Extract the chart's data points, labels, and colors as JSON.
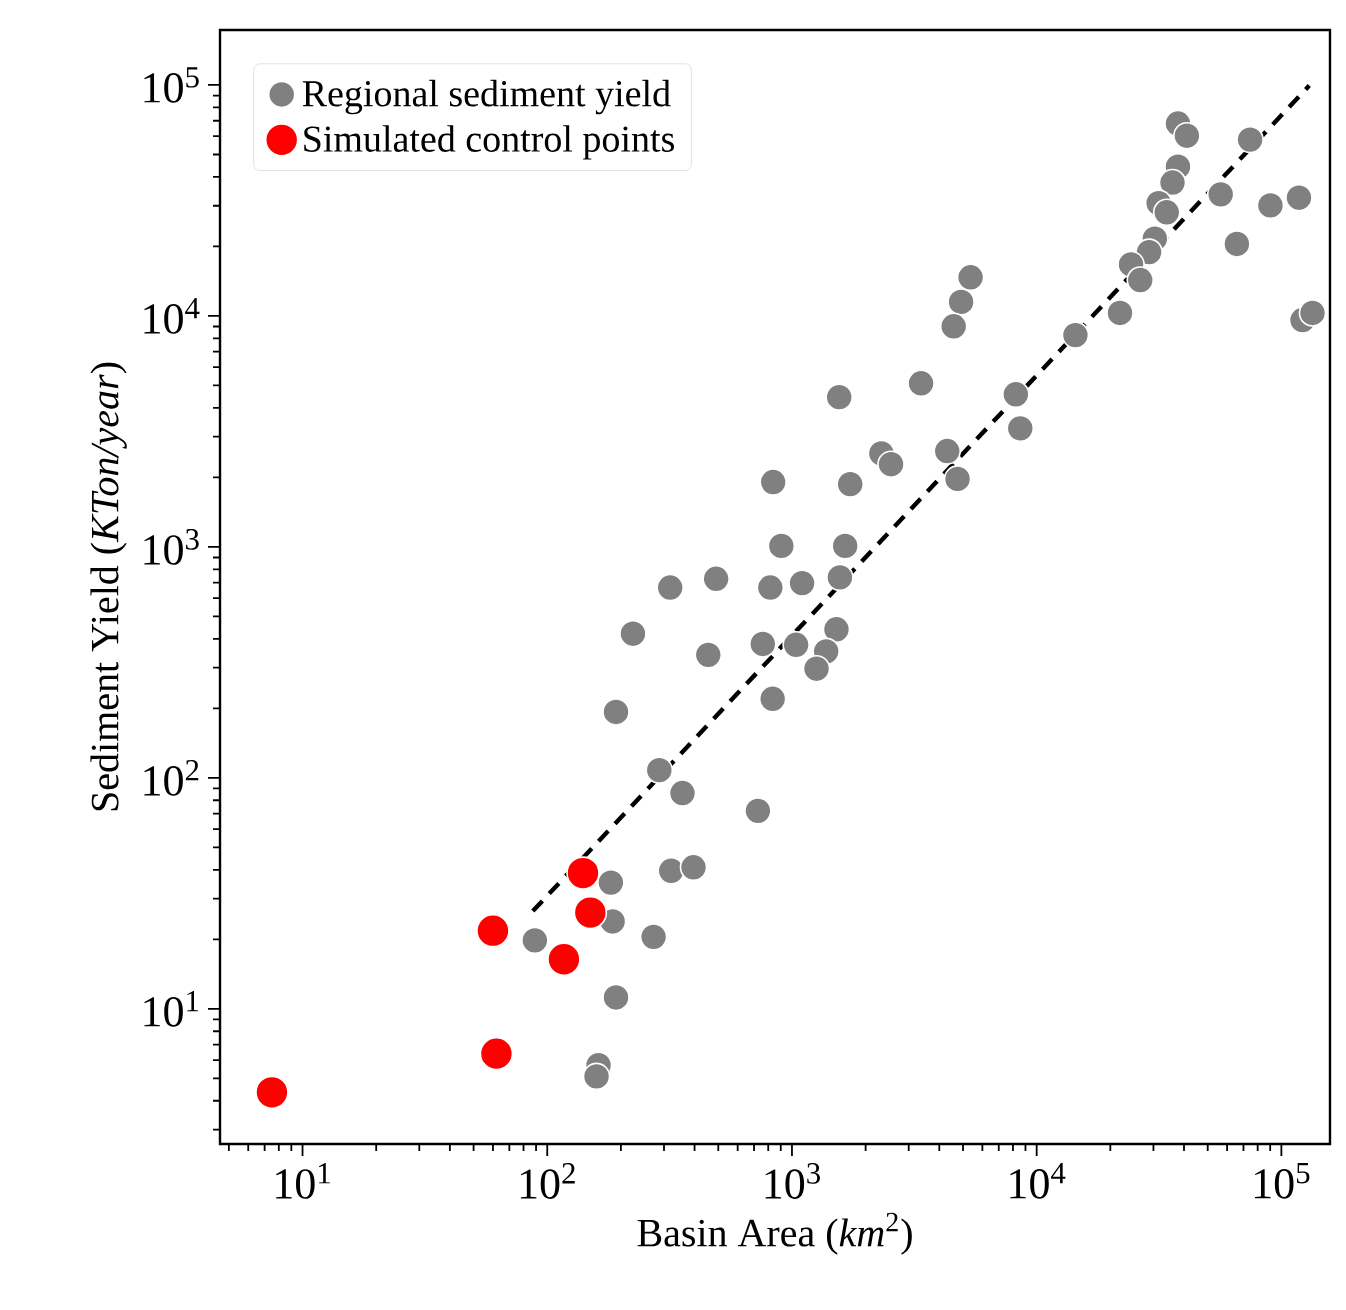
{
  "chart_data": {
    "type": "scatter",
    "xlabel": "Basin Area (*km*$^{2}$)",
    "ylabel": "Sediment Yield (*KTon/year*)",
    "log": "xy",
    "xlim": [
      4.6,
      158000
    ],
    "ylim": [
      2.6,
      173000
    ],
    "xticks": [
      {
        "value": 10,
        "label": "10$^{1}$"
      },
      {
        "value": 100,
        "label": "10$^{2}$"
      },
      {
        "value": 1000,
        "label": "10$^{3}$"
      },
      {
        "value": 10000,
        "label": "10$^{4}$"
      },
      {
        "value": 100000,
        "label": "10$^{5}$"
      }
    ],
    "yticks": [
      {
        "value": 10,
        "label": "10$^{1}$"
      },
      {
        "value": 100,
        "label": "10$^{2}$"
      },
      {
        "value": 1000,
        "label": "10$^{3}$"
      },
      {
        "value": 10000,
        "label": "10$^{4}$"
      },
      {
        "value": 100000,
        "label": "10$^{5}$"
      }
    ],
    "marker": "circle",
    "legend": "top left",
    "series": [
      {
        "name": "Regional sediment yield",
        "color": "#808080",
        "x": [
          37800,
          41100,
          74500,
          37800,
          35900,
          56500,
          31500,
          34000,
          90200,
          118000,
          30400,
          28800,
          65800,
          24300,
          26500,
          21900,
          122000,
          134000,
          14400,
          5370,
          4910,
          4580,
          3370,
          1560,
          8220,
          8570,
          2320,
          2540,
          4310,
          4750,
          838,
          1730,
          905,
          1650,
          318,
          490,
          816,
          1100,
          1570,
          1520,
          224,
          455,
          760,
          1040,
          1380,
          1260,
          834,
          191,
          287,
          357,
          726,
          321,
          396,
          182,
          185,
          272,
          89,
          191,
          162,
          159
        ],
        "values": [
          68100,
          60300,
          58000,
          44300,
          37800,
          33600,
          30800,
          28100,
          30100,
          32500,
          21600,
          18900,
          20500,
          16700,
          14300,
          10300,
          9600,
          10300,
          8260,
          14700,
          11500,
          9020,
          5110,
          4450,
          4580,
          3260,
          2540,
          2280,
          2600,
          1970,
          1910,
          1870,
          1010,
          1010,
          667,
          728,
          667,
          697,
          738,
          440,
          421,
          341,
          380,
          377,
          353,
          297,
          220,
          193,
          108,
          86,
          72,
          39.6,
          41,
          35.2,
          23.9,
          20.5,
          19.8,
          11.2,
          5.7,
          5.1
        ]
      },
      {
        "name": "Simulated control points",
        "color": "#ff0000",
        "x": [
          7.5,
          60,
          62,
          117,
          140,
          150
        ],
        "values": [
          4.35,
          21.8,
          6.4,
          16.4,
          38.7,
          26.1
        ]
      },
      {
        "type": "line",
        "color": "#000000",
        "line_style": "dashed",
        "marker": "none",
        "x": [
          87.3,
          130000
        ],
        "values": [
          26.5,
          99400
        ]
      }
    ]
  }
}
